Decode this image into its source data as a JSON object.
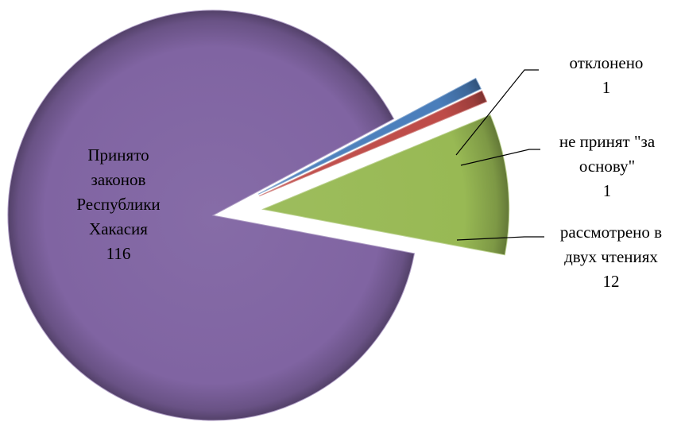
{
  "chart_data": {
    "type": "pie",
    "exploded": true,
    "style": "3d-shaded",
    "legend": "none",
    "slices": [
      {
        "label_lines": [
          "отклонено"
        ],
        "value": 1,
        "color": "#4a7ebb"
      },
      {
        "label_lines": [
          "не принят \"за",
          "основу\""
        ],
        "value": 1,
        "color": "#be4b48"
      },
      {
        "label_lines": [
          "рассмотрено в",
          "двух чтениях"
        ],
        "value": 12,
        "color": "#98b954"
      },
      {
        "label_lines": [
          "Принято",
          "законов",
          "Республики",
          "Хакасия"
        ],
        "value": 116,
        "color": "#8064a2"
      }
    ]
  }
}
